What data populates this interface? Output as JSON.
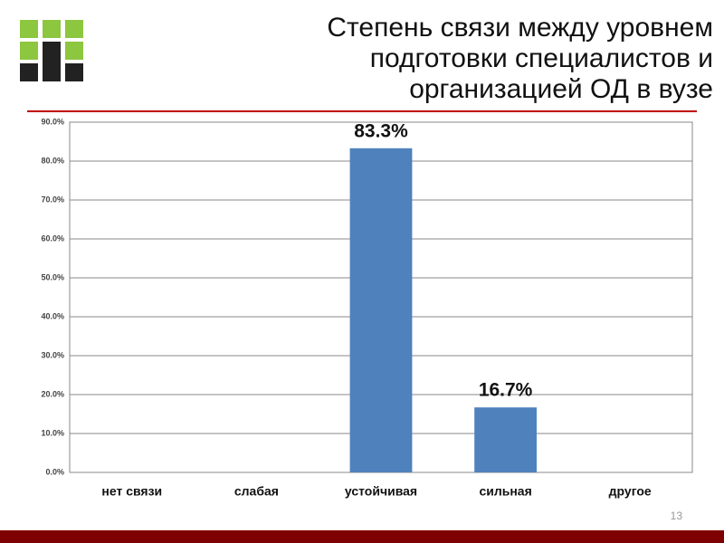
{
  "title": "Степень связи между уровнем подготовки специалистов и организацией ОД в вузе",
  "slide_number": "13",
  "chart_data": {
    "type": "bar",
    "categories": [
      "нет связи",
      "слабая",
      "устойчивая",
      "сильная",
      "другое"
    ],
    "values": [
      0,
      0,
      83.3,
      16.7,
      0
    ],
    "value_labels": [
      null,
      null,
      "83.3%",
      "16.7%",
      null
    ],
    "color": "#4f81bd",
    "ylim": [
      0,
      90
    ],
    "yticks": [
      {
        "value": 0,
        "label": "0.0%"
      },
      {
        "value": 10,
        "label": "10.0%"
      },
      {
        "value": 20,
        "label": "20.0%"
      },
      {
        "value": 30,
        "label": "30.0%"
      },
      {
        "value": 40,
        "label": "40.0%"
      },
      {
        "value": 50,
        "label": "50.0%"
      },
      {
        "value": 60,
        "label": "60.0%"
      },
      {
        "value": 70,
        "label": "70.0%"
      },
      {
        "value": 80,
        "label": "80.0%"
      },
      {
        "value": 90,
        "label": "90.0%"
      }
    ],
    "grid": true
  }
}
